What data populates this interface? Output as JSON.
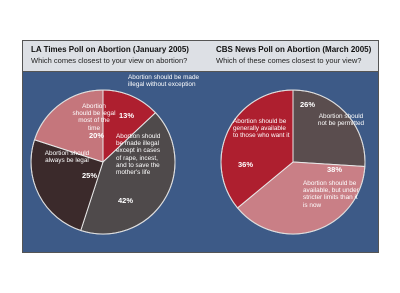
{
  "chart_data": [
    {
      "type": "pie",
      "title": "LA Times Poll on Abortion (January 2005)",
      "subtitle": "Which comes closest to your view on abortion?",
      "categories": [
        "Abortion should be made illegal without exception",
        "Abortion should be made illegal except in cases of rape, incest, and to save the mother's life",
        "Abortion should always be legal",
        "Abortion should be legal most of the time"
      ],
      "values": [
        13,
        42,
        25,
        20
      ],
      "value_labels": [
        "13%",
        "42%",
        "25%",
        "20%"
      ],
      "colors": [
        "#ae1f2f",
        "#4f4a4b",
        "#3b2a2b",
        "#c5767c"
      ]
    },
    {
      "type": "pie",
      "title": "CBS News Poll on Abortion (March 2005)",
      "subtitle": "Which of these comes closest to your view?",
      "categories": [
        "Abortion should not be permitted",
        "Abortion should be available, but under stricter limits than it is now",
        "Abortion should be generally available to those who want it"
      ],
      "values": [
        26,
        38,
        36
      ],
      "value_labels": [
        "26%",
        "38%",
        "36%"
      ],
      "colors": [
        "#5a4d4e",
        "#c97f86",
        "#ae1f2f"
      ]
    }
  ]
}
